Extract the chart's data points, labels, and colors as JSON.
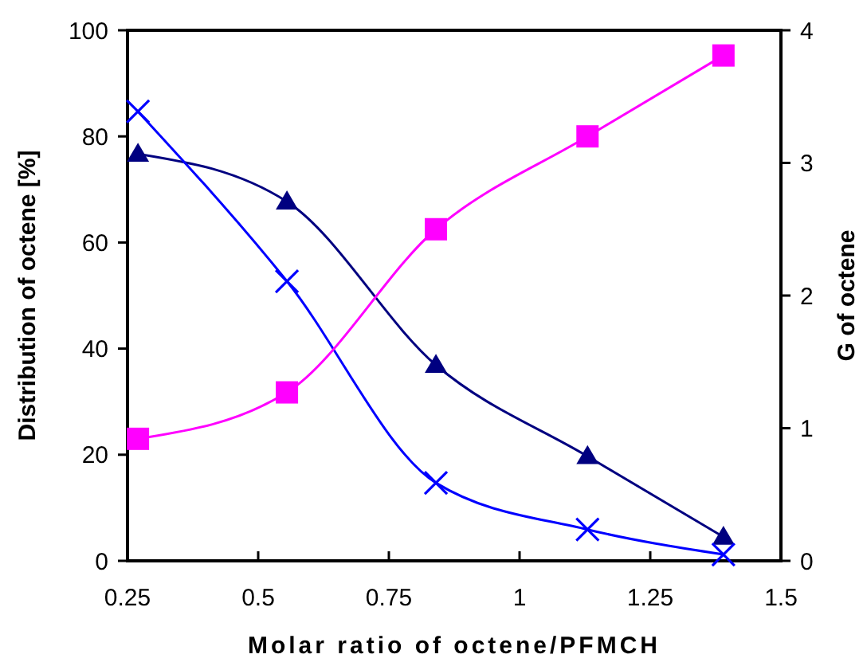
{
  "chart_data": {
    "type": "line",
    "xlabel": "Molar ratio of octene/PFMCH",
    "ylabel": "Distribution of octene [%]",
    "y2label": "G of octene",
    "x": [
      0.27,
      0.555,
      0.84,
      1.13,
      1.39
    ],
    "series": [
      {
        "color": "#000080",
        "marker": "triangle",
        "values": [
          76.7,
          67.7,
          36.9,
          19.7,
          4.5
        ]
      },
      {
        "color": "#0000ff",
        "marker": "cross",
        "values": [
          84.7,
          52.7,
          14.7,
          5.9,
          1.2
        ]
      },
      {
        "color": "#ff00ff",
        "marker": "square",
        "axis": "y2",
        "values": [
          0.92,
          1.27,
          2.5,
          3.2,
          3.81
        ]
      }
    ],
    "xlim": [
      0.25,
      1.5
    ],
    "xticks": [
      0.25,
      0.5,
      0.75,
      1,
      1.25,
      1.5
    ],
    "ylim": [
      0,
      100
    ],
    "yticks": [
      0,
      20,
      40,
      60,
      80,
      100
    ],
    "y2lim": [
      0,
      4
    ],
    "y2ticks": [
      0,
      1,
      2,
      3,
      4
    ],
    "grid": false
  }
}
